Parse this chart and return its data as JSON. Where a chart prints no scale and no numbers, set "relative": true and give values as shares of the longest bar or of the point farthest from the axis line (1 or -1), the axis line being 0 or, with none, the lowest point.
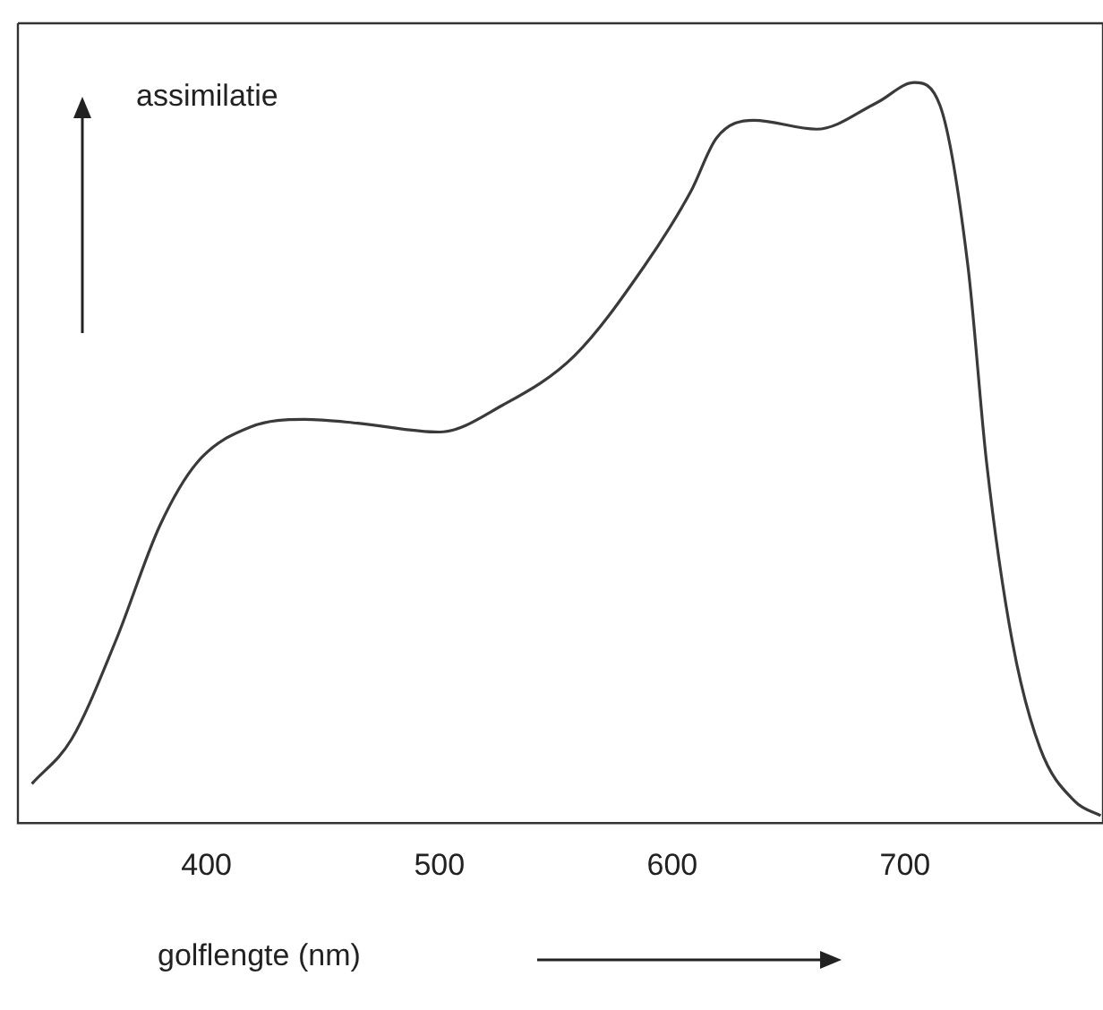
{
  "chart_data": {
    "type": "line",
    "xlabel": "golflengte (nm)",
    "ylabel": "assimilatie",
    "relative": true,
    "xlim": [
      319,
      785
    ],
    "xticks": [
      400,
      500,
      600,
      700
    ],
    "tick_labels": "x",
    "grid": false,
    "legend": false,
    "marker": "none",
    "line_style": "solid",
    "series": [
      {
        "color": "#3a3a3a",
        "x": [
          325,
          342,
          361,
          380,
          396,
          419,
          442,
          465,
          500,
          527,
          558,
          588,
          608,
          619,
          635,
          662,
          688,
          704,
          715,
          727,
          735,
          746,
          758,
          773,
          784
        ],
        "values": [
          0.053,
          0.113,
          0.246,
          0.402,
          0.487,
          0.535,
          0.545,
          0.54,
          0.528,
          0.564,
          0.631,
          0.752,
          0.853,
          0.925,
          0.949,
          0.937,
          0.973,
          1,
          0.969,
          0.752,
          0.487,
          0.246,
          0.101,
          0.029,
          0.01
        ]
      }
    ]
  }
}
